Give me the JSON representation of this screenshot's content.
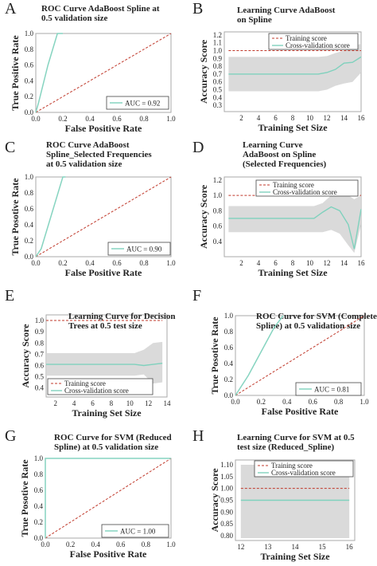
{
  "colors": {
    "roc_line": "#86d4c0",
    "chance_line": "#c0392b",
    "training": "#c0392b",
    "validation": "#7fd1bd",
    "band": "#d6d6d6",
    "frame": "#aaaaaa"
  },
  "chart_data": [
    {
      "panel": "A",
      "type": "line",
      "title": [
        "ROC Curve AdaBoost Spline at",
        "0.5 validation size"
      ],
      "xlabel": "False Positive Rate",
      "ylabel": "True Positive Rate",
      "xlim": [
        0,
        1
      ],
      "ylim": [
        0,
        1
      ],
      "xticks": [
        "0.0",
        "0.2",
        "0.4",
        "0.6",
        "0.8",
        "1.0"
      ],
      "yticks": [
        "0.0",
        "0.2",
        "0.4",
        "0.6",
        "0.8",
        "1.0"
      ],
      "series": [
        {
          "x": [
            0,
            0.02,
            0.09,
            0.16,
            0.2
          ],
          "y": [
            0,
            0.12,
            0.6,
            1.0,
            1.0
          ]
        },
        {
          "x": [
            0,
            1
          ],
          "y": [
            0,
            1
          ]
        }
      ],
      "legend": [
        "AUC = 0.92"
      ]
    },
    {
      "panel": "B",
      "type": "area",
      "title": [
        "Learning Curve AdaBoost",
        "on Spline"
      ],
      "xlabel": "Training Set Size",
      "ylabel": "Accuracy Score",
      "xlim": [
        0,
        16
      ],
      "ylim": [
        0.22,
        1.24
      ],
      "xticks": [
        "2",
        "4",
        "6",
        "8",
        "10",
        "12",
        "14",
        "16"
      ],
      "yticks": [
        "0.3",
        "0.4",
        "0.5",
        "0.6",
        "0.7",
        "0.8",
        "0.9",
        "1.0",
        "1.1",
        "1.2"
      ],
      "x": [
        0.5,
        11,
        12,
        13,
        14,
        15,
        16
      ],
      "series": [
        {
          "values": [
            1.0,
            1.0,
            1.0,
            1.0,
            1.0,
            1.0,
            1.0
          ]
        },
        {
          "values": [
            0.7,
            0.7,
            0.72,
            0.76,
            0.84,
            0.85,
            0.92
          ]
        }
      ],
      "band_upper": [
        0.92,
        0.92,
        0.93,
        0.97,
        1.0,
        1.05,
        1.09
      ],
      "band_lower": [
        0.48,
        0.48,
        0.5,
        0.55,
        0.58,
        0.6,
        0.72
      ],
      "legend": [
        "Training score",
        "Cross-validation score"
      ]
    },
    {
      "panel": "C",
      "type": "line",
      "title": [
        "ROC Curve AdaBoost",
        "Spline_Selected Frequencies",
        "at 0.5 validation size"
      ],
      "xlabel": "False Positive Rate",
      "ylabel": "True Posotive Rate",
      "xlim": [
        0,
        1
      ],
      "ylim": [
        0,
        1
      ],
      "xticks": [
        "0.0",
        "0.2",
        "0.4",
        "0.6",
        "0.8",
        "1.0"
      ],
      "yticks": [
        "0.0",
        "0.2",
        "0.4",
        "0.6",
        "0.8",
        "1.0"
      ],
      "series": [
        {
          "x": [
            0,
            0.04,
            0.12,
            0.2,
            0.22
          ],
          "y": [
            0,
            0.1,
            0.55,
            1.0,
            1.0
          ]
        },
        {
          "x": [
            0,
            1
          ],
          "y": [
            0,
            1
          ]
        }
      ],
      "legend": [
        "AUC = 0.90"
      ]
    },
    {
      "panel": "D",
      "type": "area",
      "title": [
        "Learning Curve",
        "AdaBoost on Spline",
        "(Selected Frequencies)"
      ],
      "xlabel": "Training Set Size",
      "ylabel": "Accuracy Score",
      "xlim": [
        0,
        16
      ],
      "ylim": [
        0.2,
        1.24
      ],
      "xticks": [
        "2",
        "4",
        "6",
        "8",
        "10",
        "12",
        "14",
        "16"
      ],
      "yticks": [
        "0.4",
        "0.6",
        "0.8",
        "1.0",
        "1.2"
      ],
      "x": [
        0.5,
        10.5,
        11.5,
        12.5,
        13.5,
        14.5,
        15.2,
        16
      ],
      "series": [
        {
          "values": [
            1.0,
            1.0,
            1.0,
            1.0,
            1.0,
            1.0,
            1.0,
            1.0
          ]
        },
        {
          "values": [
            0.7,
            0.7,
            0.78,
            0.85,
            0.8,
            0.62,
            0.3,
            0.82
          ]
        }
      ],
      "band_upper": [
        0.86,
        0.86,
        0.9,
        1.0,
        1.02,
        1.0,
        0.95,
        1.0
      ],
      "band_lower": [
        0.52,
        0.52,
        0.52,
        0.55,
        0.5,
        0.35,
        0.25,
        0.62
      ],
      "legend": [
        "Training score",
        "Cross-validation score"
      ]
    },
    {
      "panel": "E",
      "type": "area",
      "title": [
        "Learning Curve for Decision",
        "Trees at 0.5 test size"
      ],
      "xlabel": "Training Set Size",
      "ylabel": "Accuracy Score",
      "xlim": [
        1,
        14
      ],
      "ylim": [
        0.32,
        1.05
      ],
      "xticks": [
        "2",
        "4",
        "6",
        "8",
        "10",
        "12",
        "14"
      ],
      "yticks": [
        "0.4",
        "0.5",
        "0.6",
        "0.7",
        "0.8",
        "0.9",
        "1.0"
      ],
      "x": [
        1,
        10.5,
        11.5,
        12.5,
        13.5
      ],
      "series": [
        {
          "values": [
            1.0,
            1.0,
            1.0,
            1.0,
            1.0
          ]
        },
        {
          "values": [
            0.61,
            0.61,
            0.6,
            0.61,
            0.62
          ]
        }
      ],
      "band_upper": [
        0.71,
        0.71,
        0.74,
        0.8,
        0.81
      ],
      "band_lower": [
        0.51,
        0.51,
        0.52,
        0.44,
        0.45
      ],
      "legend": [
        "Training score",
        "Cross-validation score"
      ]
    },
    {
      "panel": "F",
      "type": "line",
      "title": [
        "ROC Curve for SVM (Complete",
        "Spline) at 0.5 validation size"
      ],
      "xlabel": "False Positive Rate",
      "ylabel": "True Posotive Rate",
      "xlim": [
        0,
        1
      ],
      "ylim": [
        0,
        1
      ],
      "xticks": [
        "0.0",
        "0.2",
        "0.4",
        "0.6",
        "0.8",
        "1.0"
      ],
      "yticks": [
        "0.0",
        "0.2",
        "0.4",
        "0.6",
        "0.8",
        "1.0"
      ],
      "series": [
        {
          "x": [
            0,
            0.1,
            0.2,
            0.3,
            0.37
          ],
          "y": [
            0,
            0.25,
            0.55,
            0.85,
            1.0
          ]
        },
        {
          "x": [
            0,
            1
          ],
          "y": [
            0,
            1
          ]
        }
      ],
      "legend": [
        "AUC = 0.81"
      ]
    },
    {
      "panel": "G",
      "type": "line",
      "title": [
        "ROC Curve for SVM (Reduced",
        "Spline) at 0.5 validation size"
      ],
      "xlabel": "False Positive Rate",
      "ylabel": "True Posotive Rate",
      "xlim": [
        0,
        1
      ],
      "ylim": [
        0,
        1
      ],
      "xticks": [
        "0.0",
        "0.2",
        "0.4",
        "0.6",
        "0.8",
        "1.0"
      ],
      "yticks": [
        "0.0",
        "0.2",
        "0.4",
        "0.6",
        "0.8",
        "1.0"
      ],
      "series": [
        {
          "x": [
            0,
            0,
            1
          ],
          "y": [
            0,
            1,
            1
          ]
        },
        {
          "x": [
            0,
            1
          ],
          "y": [
            0,
            1
          ]
        }
      ],
      "legend": [
        "AUC = 1.00"
      ]
    },
    {
      "panel": "H",
      "type": "area",
      "title": [
        "Learning Curve for SVM at 0.5",
        "test size (Reduced_Spline)"
      ],
      "xlabel": "Training Set Size",
      "ylabel": "Accuracy Score",
      "xlim": [
        11.8,
        16.2
      ],
      "ylim": [
        0.78,
        1.12
      ],
      "xticks": [
        "12",
        "13",
        "14",
        "15",
        "16"
      ],
      "yticks": [
        "0.80",
        "0.85",
        "0.90",
        "0.95",
        "1.00",
        "1.05",
        "1.10"
      ],
      "x": [
        12,
        13,
        14,
        15,
        16
      ],
      "series": [
        {
          "values": [
            1.0,
            1.0,
            1.0,
            1.0,
            1.0
          ]
        },
        {
          "values": [
            0.95,
            0.95,
            0.95,
            0.95,
            0.95
          ]
        }
      ],
      "band_upper": [
        1.1,
        1.1,
        1.1,
        1.1,
        1.1
      ],
      "band_lower": [
        0.79,
        0.79,
        0.79,
        0.79,
        0.79
      ],
      "legend": [
        "Training score",
        "Cross-validation score"
      ]
    }
  ]
}
